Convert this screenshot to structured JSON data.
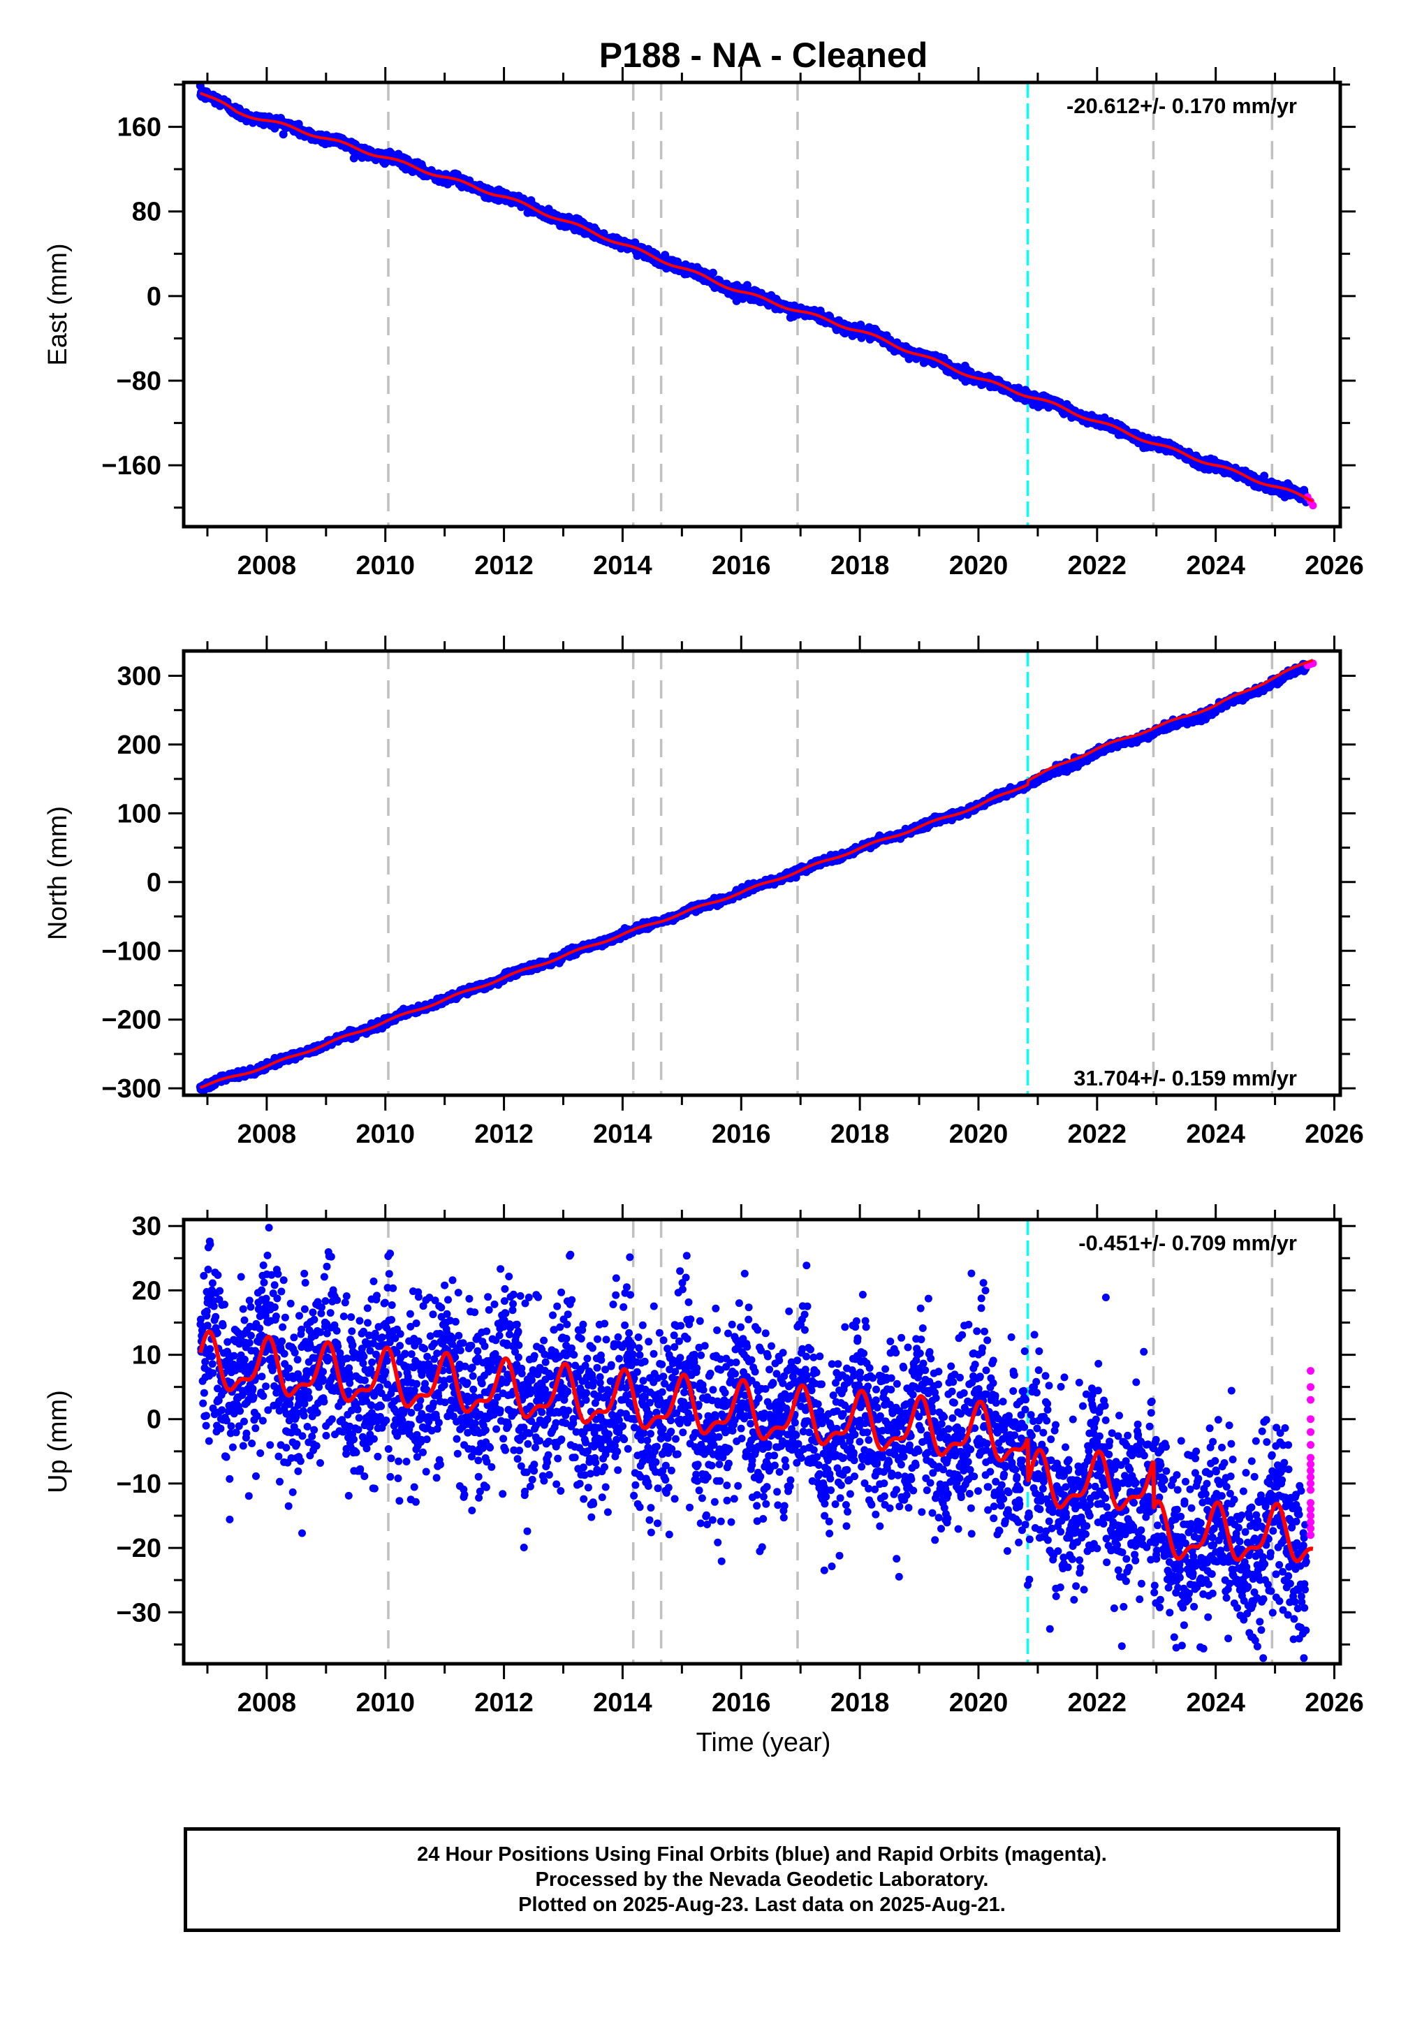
{
  "title": "P188  - NA - Cleaned",
  "x_axis_label": "Time (year)",
  "colors": {
    "final_orbits": "#0000ff",
    "rapid_orbits": "#ff00ff",
    "model_fit": "#ff0000",
    "event_line_gray": "#c0c0c0",
    "event_line_cyan": "#00ffff"
  },
  "chart_data": [
    {
      "type": "scatter",
      "panel": "east",
      "ylabel": "East (mm)",
      "xlim": [
        2006.6,
        2026.1
      ],
      "ylim": [
        -218,
        202
      ],
      "x_ticks": [
        2008,
        2010,
        2012,
        2014,
        2016,
        2018,
        2020,
        2022,
        2024,
        2026
      ],
      "y_ticks": [
        160,
        80,
        0,
        -80,
        -160
      ],
      "y_tick_labels": [
        "160",
        "80",
        "0",
        "−80",
        "−160"
      ],
      "rate_label": "-20.612+/- 0.170 mm/yr",
      "rate_label_position": "top-right",
      "time_range": [
        2006.88,
        2025.64
      ],
      "trend": {
        "start": 193,
        "end": -193
      },
      "model_anchor_points": [
        [
          2006.88,
          193
        ],
        [
          2007.5,
          174
        ],
        [
          2008.5,
          158
        ],
        [
          2010,
          131
        ],
        [
          2012,
          94
        ],
        [
          2014,
          49
        ],
        [
          2016,
          4
        ],
        [
          2018,
          -33
        ],
        [
          2020,
          -78
        ],
        [
          2021,
          -97
        ],
        [
          2023,
          -140
        ],
        [
          2024,
          -160
        ],
        [
          2025.64,
          -193
        ]
      ],
      "series": [
        {
          "name": "Final Orbits (blue)",
          "color": "#0000ff",
          "scatter_mm": 2.5
        },
        {
          "name": "Rapid Orbits (magenta)",
          "color": "#ff00ff",
          "x": [
            2025.55,
            2025.6,
            2025.64
          ],
          "y": [
            -190,
            -194,
            -198
          ]
        },
        {
          "name": "Model",
          "color": "#ff0000"
        }
      ]
    },
    {
      "type": "scatter",
      "panel": "north",
      "ylabel": "North (mm)",
      "xlim": [
        2006.6,
        2026.1
      ],
      "ylim": [
        -310,
        336
      ],
      "x_ticks": [
        2008,
        2010,
        2012,
        2014,
        2016,
        2018,
        2020,
        2022,
        2024,
        2026
      ],
      "y_ticks": [
        300,
        200,
        100,
        0,
        -100,
        -200,
        -300
      ],
      "y_tick_labels": [
        "300",
        "200",
        "100",
        "0",
        "−100",
        "−200",
        "−300"
      ],
      "rate_label": "31.704+/- 0.159 mm/yr",
      "rate_label_position": "bottom-right",
      "time_range": [
        2006.88,
        2025.64
      ],
      "trend": {
        "start": -298,
        "end": 318
      },
      "offset_event": {
        "time": 2020.83,
        "jump": 6
      },
      "model_anchor_points": [
        [
          2006.88,
          -298
        ],
        [
          2008,
          -268
        ],
        [
          2010,
          -203
        ],
        [
          2012,
          -139
        ],
        [
          2014,
          -76
        ],
        [
          2016,
          -15
        ],
        [
          2018,
          49
        ],
        [
          2020,
          111
        ],
        [
          2020.83,
          143
        ],
        [
          2022,
          188
        ],
        [
          2024,
          251
        ],
        [
          2025.64,
          318
        ]
      ],
      "series": [
        {
          "name": "Final Orbits (blue)",
          "color": "#0000ff",
          "scatter_mm": 2.5
        },
        {
          "name": "Rapid Orbits (magenta)",
          "color": "#ff00ff",
          "x": [
            2025.55,
            2025.6,
            2025.64
          ],
          "y": [
            315,
            317,
            318
          ]
        },
        {
          "name": "Model",
          "color": "#ff0000"
        }
      ]
    },
    {
      "type": "scatter",
      "panel": "up",
      "ylabel": "Up (mm)",
      "xlim": [
        2006.6,
        2026.1
      ],
      "ylim": [
        -38,
        31
      ],
      "x_ticks": [
        2008,
        2010,
        2012,
        2014,
        2016,
        2018,
        2020,
        2022,
        2024,
        2026
      ],
      "y_ticks": [
        30,
        20,
        10,
        0,
        -10,
        -20,
        -30
      ],
      "y_tick_labels": [
        "30",
        "20",
        "10",
        "0",
        "−10",
        "−20",
        "−30"
      ],
      "rate_label": "-0.451+/- 0.709 mm/yr",
      "rate_label_position": "top-right",
      "time_range": [
        2006.88,
        2025.64
      ],
      "seasonal_amplitude": 3.7,
      "scatter_mm": 7,
      "model_segments": [
        {
          "from": 2006.88,
          "to": 2020.83,
          "start": 8.5,
          "end": -3.2
        },
        {
          "from": 2020.83,
          "to": 2022.95,
          "start": -10,
          "end": -10.5
        },
        {
          "from": 2022.95,
          "to": 2025.64,
          "start": -18,
          "end": -18.5
        }
      ],
      "series": [
        {
          "name": "Final Orbits (blue)",
          "color": "#0000ff"
        },
        {
          "name": "Rapid Orbits (magenta)",
          "color": "#ff00ff",
          "x": [
            2025.6,
            2025.6,
            2025.6,
            2025.6,
            2025.6,
            2025.6,
            2025.6,
            2025.6,
            2025.6,
            2025.6,
            2025.6,
            2025.6,
            2025.6,
            2025.6,
            2025.6,
            2025.6,
            2025.6,
            2025.6
          ],
          "y": [
            7.5,
            5,
            3,
            0,
            -2,
            -4,
            -6,
            -7,
            -8,
            -9,
            -10,
            -11,
            -13,
            -14,
            -15,
            -16,
            -17,
            -18
          ]
        },
        {
          "name": "Model",
          "color": "#ff0000"
        }
      ]
    }
  ],
  "event_lines": [
    {
      "time": 2010.05,
      "color": "gray"
    },
    {
      "time": 2014.18,
      "color": "gray"
    },
    {
      "time": 2014.65,
      "color": "gray"
    },
    {
      "time": 2016.95,
      "color": "gray"
    },
    {
      "time": 2020.83,
      "color": "cyan"
    },
    {
      "time": 2022.95,
      "color": "gray"
    },
    {
      "time": 2024.95,
      "color": "gray"
    }
  ],
  "footer": {
    "line1": "24 Hour Positions Using Final Orbits (blue) and Rapid Orbits (magenta).",
    "line2": "Processed by the Nevada Geodetic Laboratory.",
    "line3": "Plotted on 2025-Aug-23. Last data on 2025-Aug-21."
  }
}
